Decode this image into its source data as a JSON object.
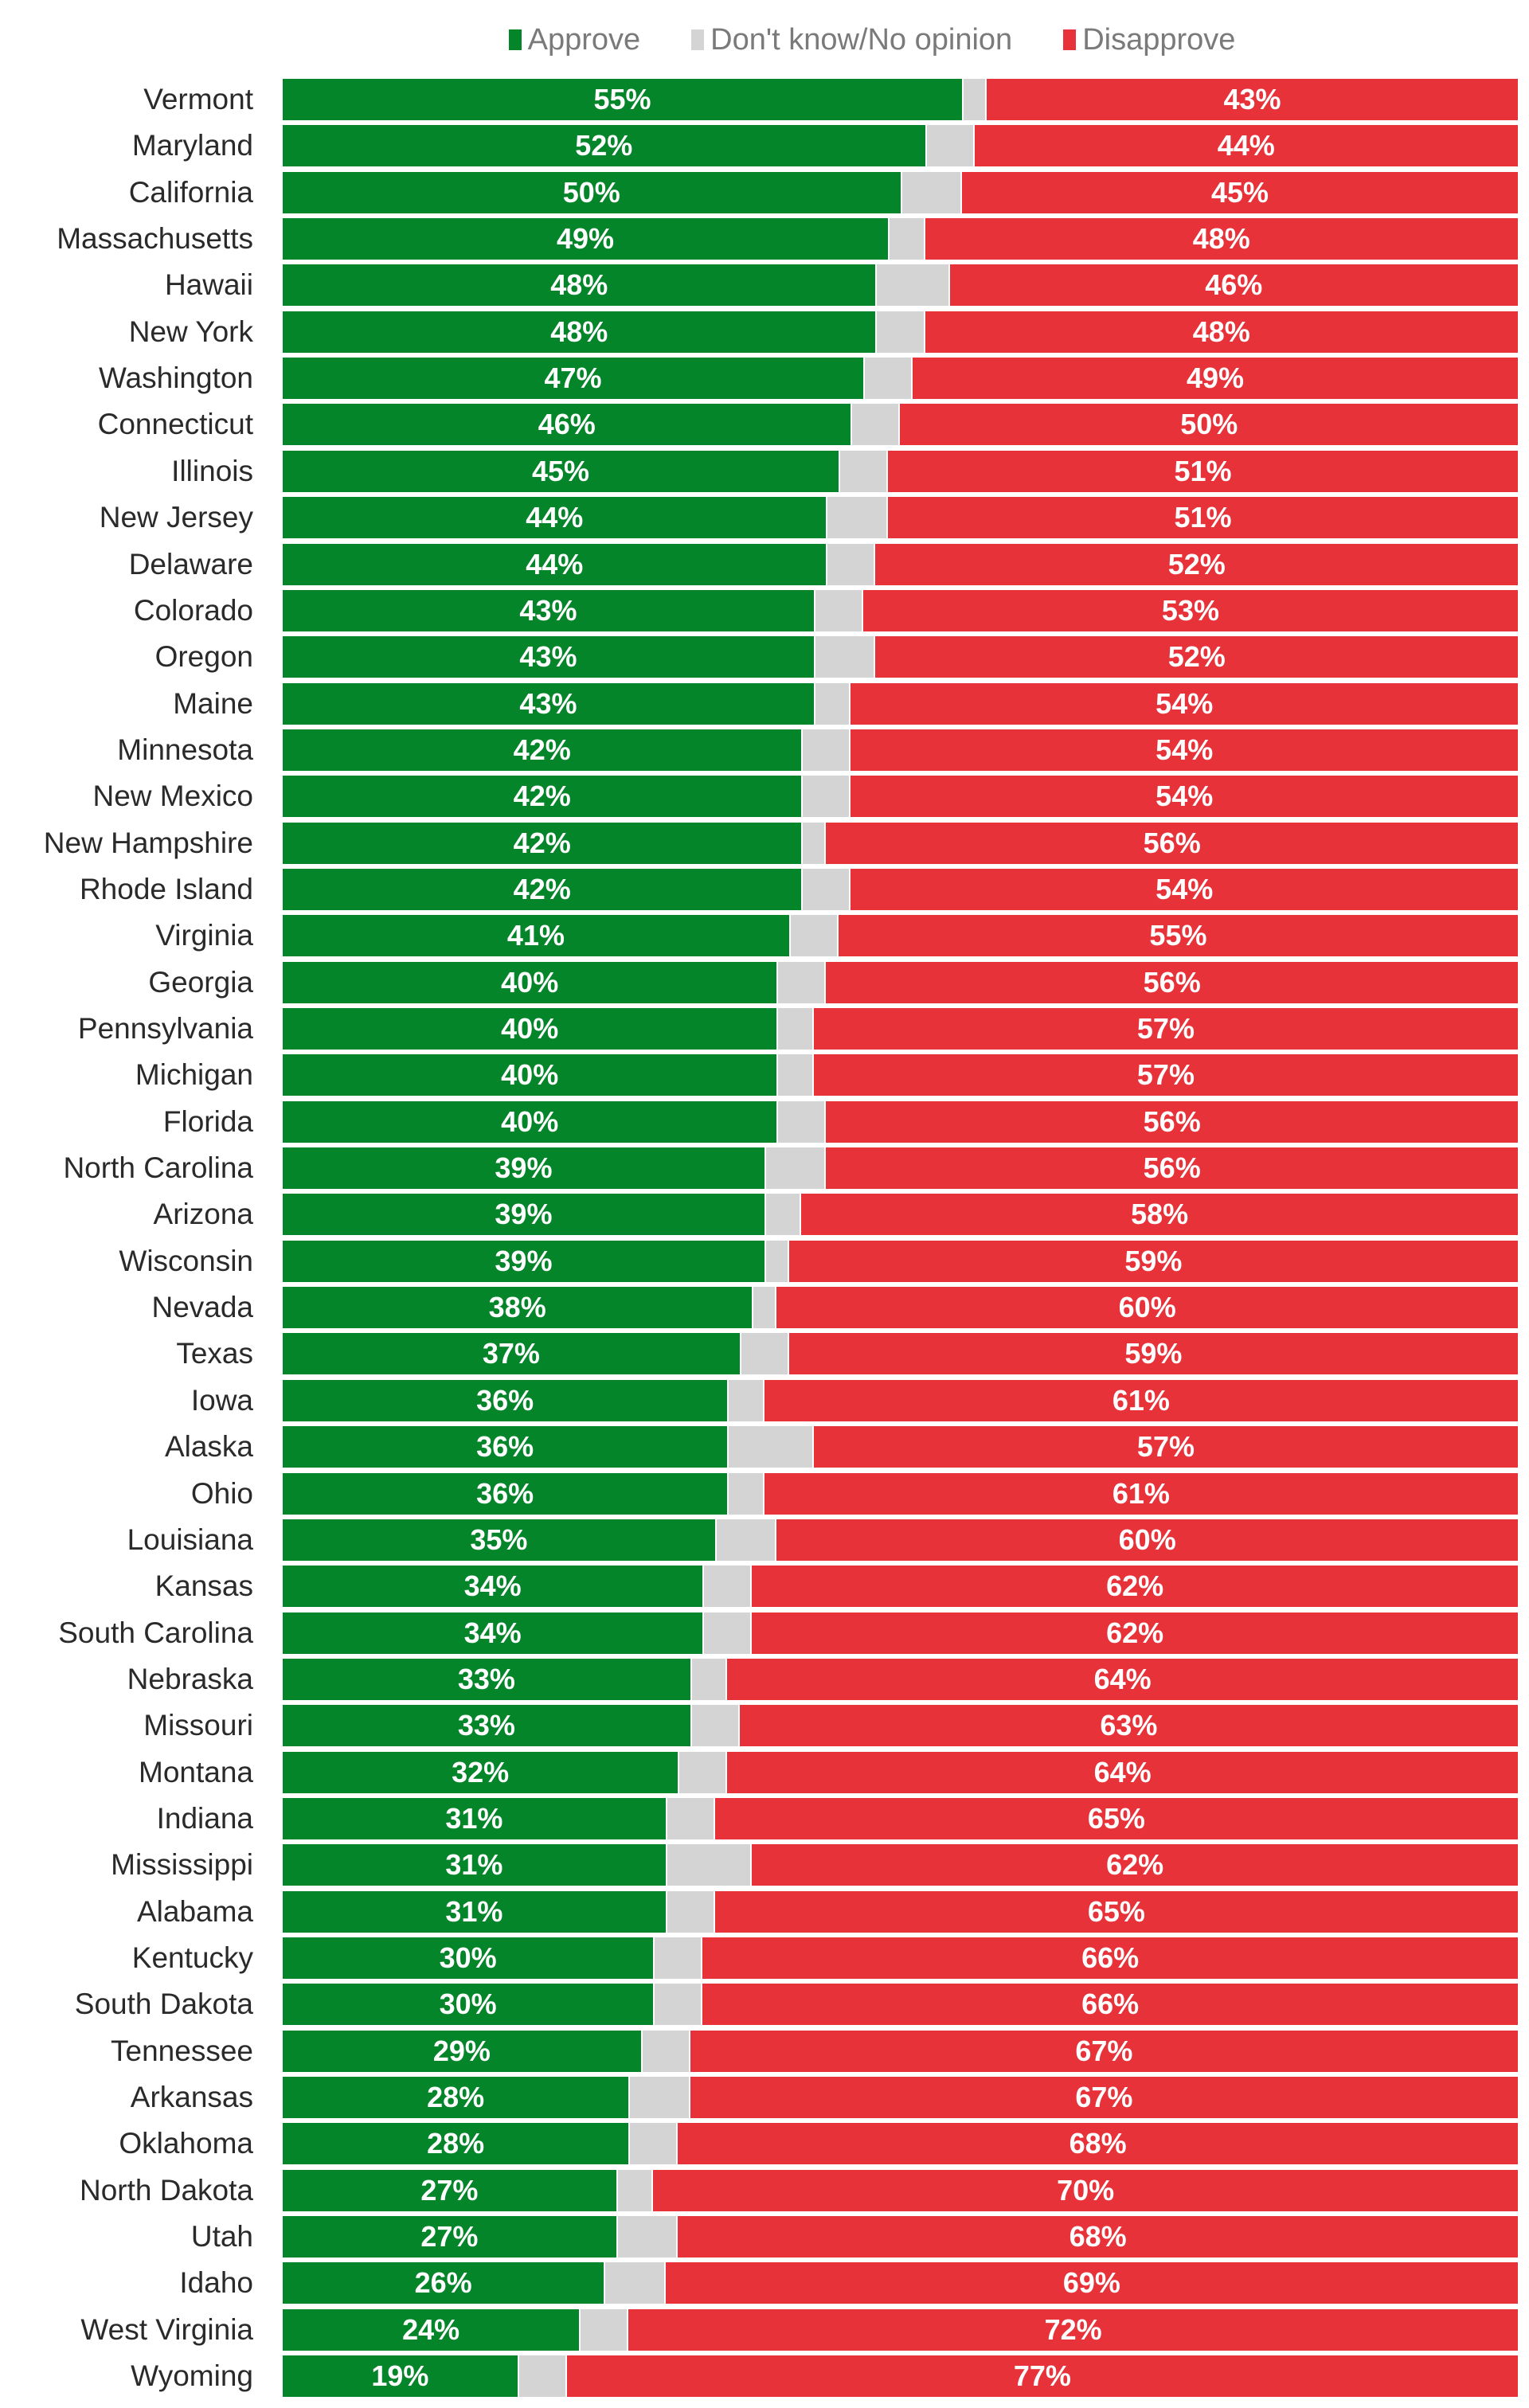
{
  "colors": {
    "approve": "#04852a",
    "no_opinion": "#d4d4d4",
    "disapprove": "#e8323a"
  },
  "chart_data": {
    "type": "bar",
    "orientation": "horizontal-stacked-100",
    "title": "",
    "xlabel": "",
    "ylabel": "",
    "xlim": [
      0,
      100
    ],
    "legend_position": "top-center",
    "legend": [
      "Approve",
      "Don't know/No opinion",
      "Disapprove"
    ],
    "categories": [
      "Vermont",
      "Maryland",
      "California",
      "Massachusetts",
      "Hawaii",
      "New York",
      "Washington",
      "Connecticut",
      "Illinois",
      "New Jersey",
      "Delaware",
      "Colorado",
      "Oregon",
      "Maine",
      "Minnesota",
      "New Mexico",
      "New Hampshire",
      "Rhode Island",
      "Virginia",
      "Georgia",
      "Pennsylvania",
      "Michigan",
      "Florida",
      "North Carolina",
      "Arizona",
      "Wisconsin",
      "Nevada",
      "Texas",
      "Iowa",
      "Alaska",
      "Ohio",
      "Louisiana",
      "Kansas",
      "South Carolina",
      "Nebraska",
      "Missouri",
      "Montana",
      "Indiana",
      "Mississippi",
      "Alabama",
      "Kentucky",
      "South Dakota",
      "Tennessee",
      "Arkansas",
      "Oklahoma",
      "North Dakota",
      "Utah",
      "Idaho",
      "West Virginia",
      "Wyoming"
    ],
    "series": [
      {
        "name": "Approve",
        "values": [
          55,
          52,
          50,
          49,
          48,
          48,
          47,
          46,
          45,
          44,
          44,
          43,
          43,
          43,
          42,
          42,
          42,
          42,
          41,
          40,
          40,
          40,
          40,
          39,
          39,
          39,
          38,
          37,
          36,
          36,
          36,
          35,
          34,
          34,
          33,
          33,
          32,
          31,
          31,
          31,
          30,
          30,
          29,
          28,
          28,
          27,
          27,
          26,
          24,
          19
        ]
      },
      {
        "name": "Don't know/No opinion",
        "values": [
          2,
          4,
          5,
          3,
          6,
          4,
          4,
          4,
          4,
          5,
          4,
          4,
          5,
          3,
          4,
          4,
          2,
          4,
          4,
          4,
          3,
          3,
          4,
          5,
          3,
          2,
          2,
          4,
          3,
          7,
          3,
          5,
          4,
          4,
          3,
          4,
          4,
          4,
          7,
          4,
          4,
          4,
          4,
          5,
          4,
          3,
          5,
          5,
          4,
          4
        ]
      },
      {
        "name": "Disapprove",
        "values": [
          43,
          44,
          45,
          48,
          46,
          48,
          49,
          50,
          51,
          51,
          52,
          53,
          52,
          54,
          54,
          54,
          56,
          54,
          55,
          56,
          57,
          57,
          56,
          56,
          58,
          59,
          60,
          59,
          61,
          57,
          61,
          60,
          62,
          62,
          64,
          63,
          64,
          65,
          62,
          65,
          66,
          66,
          67,
          67,
          68,
          70,
          68,
          69,
          72,
          77
        ]
      }
    ],
    "value_label_suffix": "%"
  }
}
